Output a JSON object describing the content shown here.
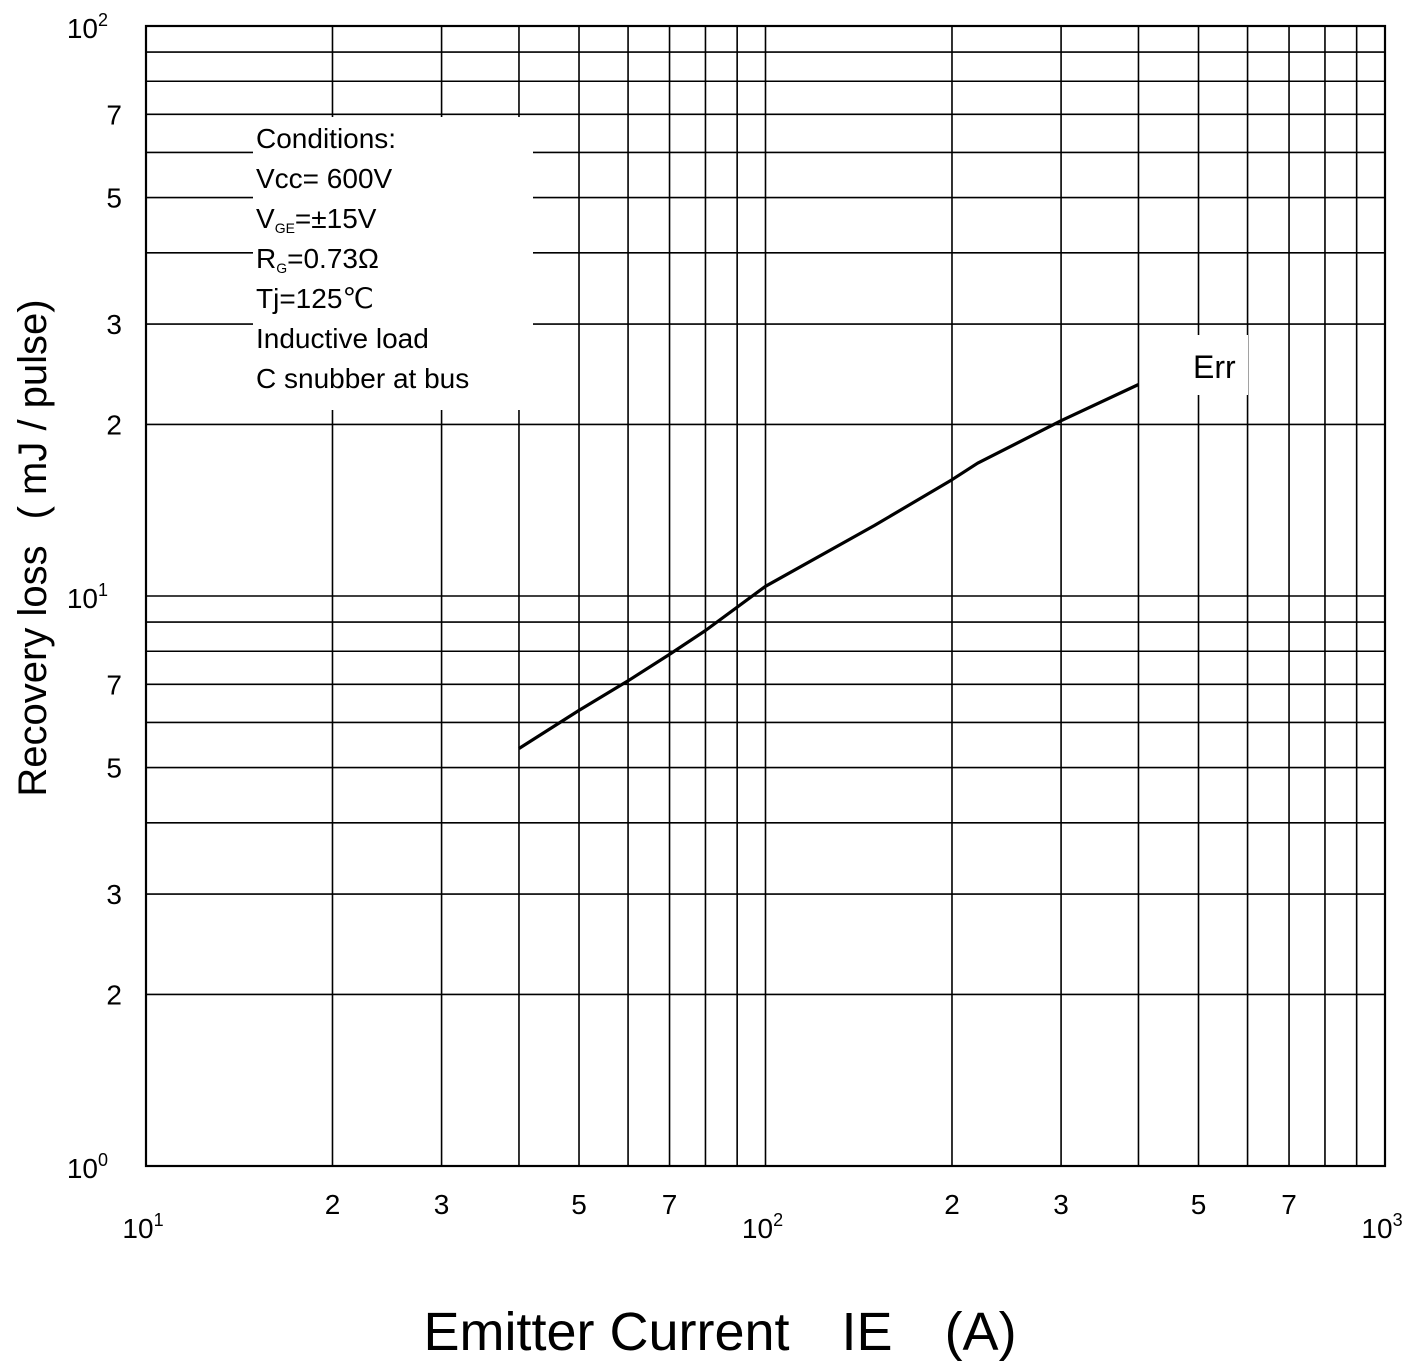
{
  "chart_data": {
    "type": "line",
    "xscale": "log",
    "yscale": "log",
    "xlim": [
      10,
      1000
    ],
    "ylim": [
      1,
      100
    ],
    "xlabel": "Emitter Current",
    "xlabel_symbol": "IE",
    "xlabel_unit": "(A)",
    "ylabel": "Recovery loss",
    "ylabel_unit": "( mJ / pulse)",
    "x_ticks": [
      {
        "value": 10,
        "base": "10",
        "exp": "1"
      },
      {
        "value": 20,
        "label": "2"
      },
      {
        "value": 30,
        "label": "3"
      },
      {
        "value": 50,
        "label": "5"
      },
      {
        "value": 70,
        "label": "7"
      },
      {
        "value": 100,
        "base": "10",
        "exp": "2"
      },
      {
        "value": 200,
        "label": "2"
      },
      {
        "value": 300,
        "label": "3"
      },
      {
        "value": 500,
        "label": "5"
      },
      {
        "value": 700,
        "label": "7"
      },
      {
        "value": 1000,
        "base": "10",
        "exp": "3"
      }
    ],
    "y_ticks": [
      {
        "value": 1,
        "base": "10",
        "exp": "0"
      },
      {
        "value": 2,
        "label": "2"
      },
      {
        "value": 3,
        "label": "3"
      },
      {
        "value": 5,
        "label": "5"
      },
      {
        "value": 7,
        "label": "7"
      },
      {
        "value": 10,
        "base": "10",
        "exp": "1"
      },
      {
        "value": 20,
        "label": "2"
      },
      {
        "value": 30,
        "label": "3"
      },
      {
        "value": 50,
        "label": "5"
      },
      {
        "value": 70,
        "label": "7"
      },
      {
        "value": 100,
        "base": "10",
        "exp": "2"
      }
    ],
    "grid": true,
    "series": [
      {
        "name": "Err",
        "x": [
          40,
          50,
          60,
          70,
          80,
          100,
          150,
          200,
          220,
          300,
          400
        ],
        "y": [
          5.4,
          6.3,
          7.1,
          7.9,
          8.7,
          10.4,
          13.3,
          16.0,
          17.1,
          20.3,
          23.5
        ]
      }
    ],
    "conditions_box": {
      "lines": [
        {
          "text": "Conditions:"
        },
        {
          "text": "Vcc= 600V"
        },
        {
          "main": "V",
          "sub": "GE",
          "rest": "=±15V"
        },
        {
          "main": "R",
          "sub": "G",
          "rest": "=0.73Ω"
        },
        {
          "text": "Tj=125℃"
        },
        {
          "text": "Inductive load"
        },
        {
          "text": "C snubber at bus"
        }
      ]
    }
  }
}
